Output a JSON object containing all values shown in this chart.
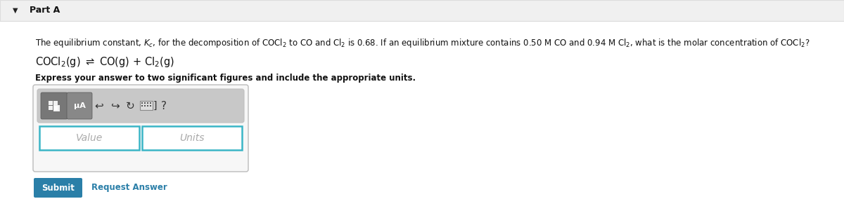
{
  "bg_color": "#f4f4f4",
  "content_bg": "#ffffff",
  "part_label": "Part A",
  "question_text": "The equilibrium constant, $K_c$, for the decomposition of COCl$_2$ to CO and Cl$_2$ is 0.68. If an equilibrium mixture contains 0.50 M CO and 0.94 M Cl$_2$, what is the molar concentration of COCl$_2$?",
  "equation": "COCl$_2$(g) $\\rightleftharpoons$ CO(g) + Cl$_2$(g)",
  "bold_instruction": "Express your answer to two significant figures and include the appropriate units.",
  "value_placeholder": "Value",
  "units_placeholder": "Units",
  "submit_label": "Submit",
  "request_answer_label": "Request Answer",
  "submit_bg": "#2a7fa8",
  "submit_text_color": "#ffffff",
  "request_answer_color": "#2a7fa8",
  "toolbar_bg": "#c8c8c8",
  "btn1_bg": "#777777",
  "btn2_bg": "#888888",
  "input_border_color": "#3ab5c6",
  "placeholder_color": "#aaaaaa",
  "top_bar_bg": "#f0f0f0",
  "top_bar_border": "#dddddd",
  "widget_border_color": "#bbbbbb",
  "widget_bg": "#f7f7f7",
  "toolbar_border": "#c0c0c0"
}
